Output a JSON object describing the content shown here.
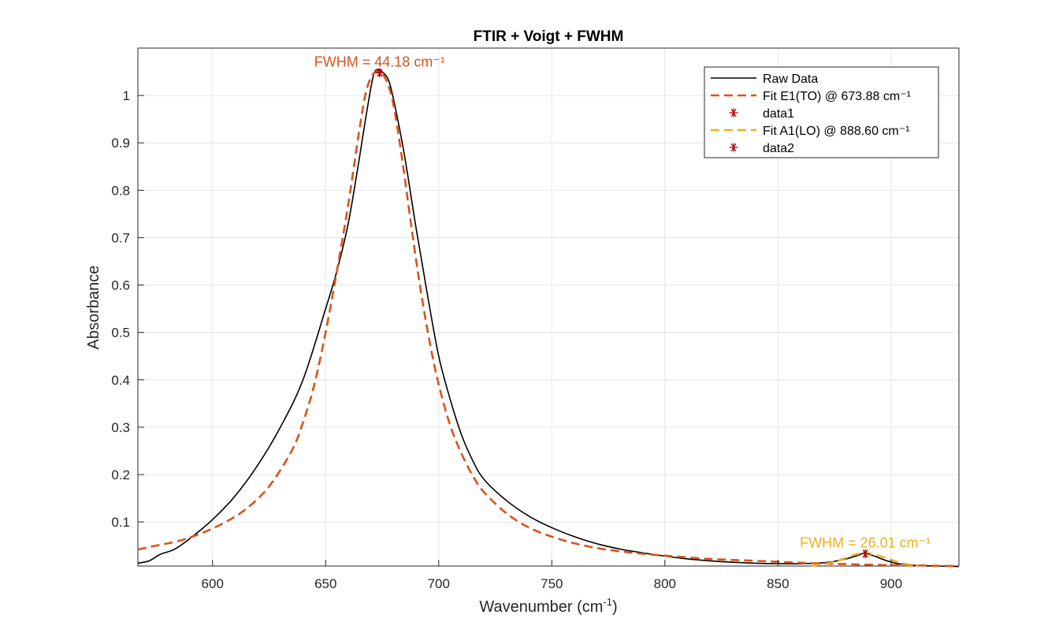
{
  "chart_data": {
    "type": "line",
    "title": "FTIR + Voigt + FWHM",
    "xlabel_main": "Wavenumber  (cm",
    "xlabel_sup": "-1",
    "xlabel_close": ")",
    "ylabel": "Absorbance",
    "xlim": [
      567,
      930
    ],
    "ylim": [
      0.007,
      1.1
    ],
    "xticks": [
      600,
      650,
      700,
      750,
      800,
      850,
      900
    ],
    "yticks": [
      0.1,
      0.2,
      0.3,
      0.4,
      0.5,
      0.6,
      0.7,
      0.8,
      0.9,
      1
    ],
    "ytick_labels": [
      "0.1",
      "0.2",
      "0.3",
      "0.4",
      "0.5",
      "0.6",
      "0.7",
      "0.8",
      "0.9",
      "1"
    ],
    "grid": true,
    "legend_position": "top-right",
    "series": [
      {
        "name": "Raw Data",
        "color": "#000000",
        "style": "solid",
        "x": [
          567,
          572,
          577,
          583,
          590,
          600,
          610,
          620,
          630,
          640,
          650,
          655,
          660,
          665,
          668,
          671,
          673,
          675,
          678,
          681,
          685,
          690,
          695,
          700,
          705,
          710,
          715,
          720,
          730,
          740,
          750,
          760,
          770,
          780,
          790,
          800,
          810,
          820,
          830,
          840,
          850,
          860,
          870,
          875,
          880,
          885,
          888,
          892,
          897,
          902,
          907,
          912,
          920,
          930
        ],
        "y": [
          0.013,
          0.018,
          0.032,
          0.042,
          0.065,
          0.105,
          0.155,
          0.22,
          0.3,
          0.4,
          0.55,
          0.63,
          0.73,
          0.87,
          0.96,
          1.04,
          1.055,
          1.05,
          1.03,
          0.97,
          0.87,
          0.72,
          0.58,
          0.45,
          0.36,
          0.285,
          0.23,
          0.19,
          0.145,
          0.112,
          0.088,
          0.069,
          0.054,
          0.043,
          0.035,
          0.028,
          0.022,
          0.018,
          0.015,
          0.013,
          0.012,
          0.012,
          0.014,
          0.017,
          0.022,
          0.029,
          0.034,
          0.029,
          0.02,
          0.013,
          0.01,
          0.008,
          0.007,
          0.006
        ]
      },
      {
        "name": "Fit E1(TO) @ 673.88 cm⁻¹",
        "color": "#D95319",
        "style": "dashed",
        "x": [
          567,
          575,
          585,
          595,
          605,
          615,
          625,
          635,
          640,
          645,
          650,
          655,
          660,
          665,
          668,
          671,
          674,
          677,
          680,
          684,
          688,
          692,
          696,
          700,
          705,
          710,
          715,
          720,
          730,
          740,
          750,
          760,
          770,
          780,
          790,
          800,
          820,
          840,
          860,
          880,
          900,
          930
        ],
        "y": [
          0.042,
          0.05,
          0.06,
          0.076,
          0.098,
          0.128,
          0.175,
          0.25,
          0.31,
          0.39,
          0.5,
          0.63,
          0.77,
          0.93,
          1.01,
          1.045,
          1.05,
          1.03,
          0.98,
          0.86,
          0.72,
          0.59,
          0.48,
          0.39,
          0.305,
          0.245,
          0.198,
          0.163,
          0.118,
          0.088,
          0.069,
          0.055,
          0.045,
          0.038,
          0.033,
          0.029,
          0.022,
          0.018,
          0.014,
          0.011,
          0.009,
          0.007
        ]
      },
      {
        "name": "data1",
        "color": "#C00000",
        "style": "marker",
        "x": [
          673.88
        ],
        "y": [
          1.048
        ]
      },
      {
        "name": "Fit A1(LO) @ 888.60 cm⁻¹",
        "color": "#EDB120",
        "style": "dashed",
        "x": [
          865,
          870,
          875,
          880,
          884,
          888.6,
          893,
          897,
          902,
          907,
          912
        ],
        "y": [
          0.008,
          0.011,
          0.016,
          0.024,
          0.031,
          0.034,
          0.031,
          0.025,
          0.017,
          0.011,
          0.008
        ]
      },
      {
        "name": "data2",
        "color": "#C00000",
        "style": "marker",
        "x": [
          888.6
        ],
        "y": [
          0.033
        ]
      }
    ],
    "annotations": [
      {
        "text": "FWHM = 44.18 cm⁻¹",
        "x": 673.88,
        "y": 1.048,
        "color": "#D95319"
      },
      {
        "text": "FWHM = 26.01 cm⁻¹",
        "x": 888.6,
        "y": 0.033,
        "color": "#EDB120"
      }
    ]
  }
}
